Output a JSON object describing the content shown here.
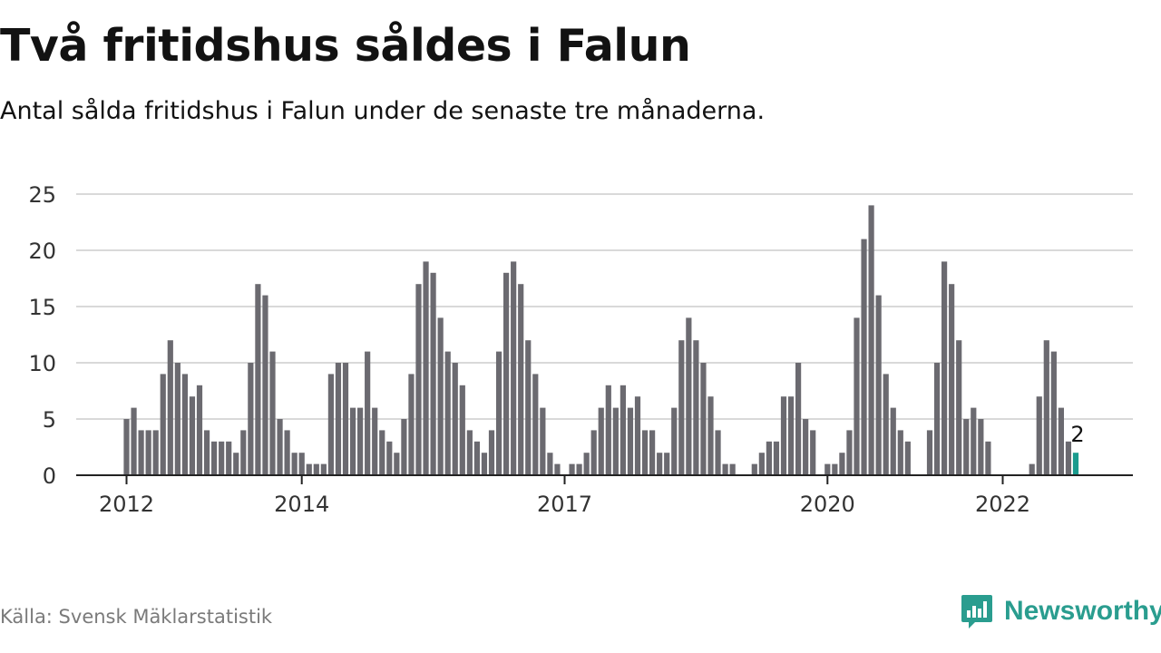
{
  "title": "Två fritidshus såldes i Falun",
  "subtitle": "Antal sålda fritidshus i Falun under de senaste tre månaderna.",
  "source": "Källa: Svensk Mäklarstatistik",
  "brand": {
    "name": "Newsworthy",
    "icon": "newsworthy-logo-icon",
    "color": "#2a9d8f"
  },
  "colors": {
    "bar": "#6b6a70",
    "highlight": "#1a9b8e",
    "grid": "#d9d9d9",
    "axis": "#222222",
    "tick_text": "#333333"
  },
  "chart_data": {
    "type": "bar",
    "title": "Två fritidshus såldes i Falun",
    "subtitle": "Antal sålda fritidshus i Falun under de senaste tre månaderna.",
    "xlabel": "",
    "ylabel": "",
    "ylim": [
      0,
      25
    ],
    "y_ticks": [
      0,
      5,
      10,
      15,
      20,
      25
    ],
    "x_tick_labels": [
      {
        "label": "2012",
        "index": 0
      },
      {
        "label": "2014",
        "index": 24
      },
      {
        "label": "2017",
        "index": 60
      },
      {
        "label": "2020",
        "index": 96
      },
      {
        "label": "2022",
        "index": 120
      }
    ],
    "first_period": "2012-01",
    "grid": true,
    "values": [
      5,
      6,
      4,
      4,
      4,
      9,
      12,
      10,
      9,
      7,
      8,
      4,
      3,
      3,
      3,
      2,
      4,
      10,
      17,
      16,
      11,
      5,
      4,
      2,
      2,
      1,
      1,
      1,
      9,
      10,
      10,
      6,
      6,
      11,
      6,
      4,
      3,
      2,
      5,
      9,
      17,
      19,
      18,
      14,
      11,
      10,
      8,
      4,
      3,
      2,
      4,
      11,
      18,
      19,
      17,
      12,
      9,
      6,
      2,
      1,
      0,
      1,
      1,
      2,
      4,
      6,
      8,
      6,
      8,
      6,
      7,
      4,
      4,
      2,
      2,
      6,
      12,
      14,
      12,
      10,
      7,
      4,
      1,
      1,
      0,
      0,
      1,
      2,
      3,
      3,
      7,
      7,
      10,
      5,
      4,
      0,
      1,
      1,
      2,
      4,
      14,
      21,
      24,
      16,
      9,
      6,
      4,
      3,
      0,
      0,
      4,
      10,
      19,
      17,
      12,
      5,
      6,
      5,
      3,
      0,
      0,
      0,
      0,
      0,
      1,
      7,
      12,
      11,
      6,
      3,
      2
    ],
    "highlight": {
      "index": 130,
      "label": "2"
    }
  }
}
